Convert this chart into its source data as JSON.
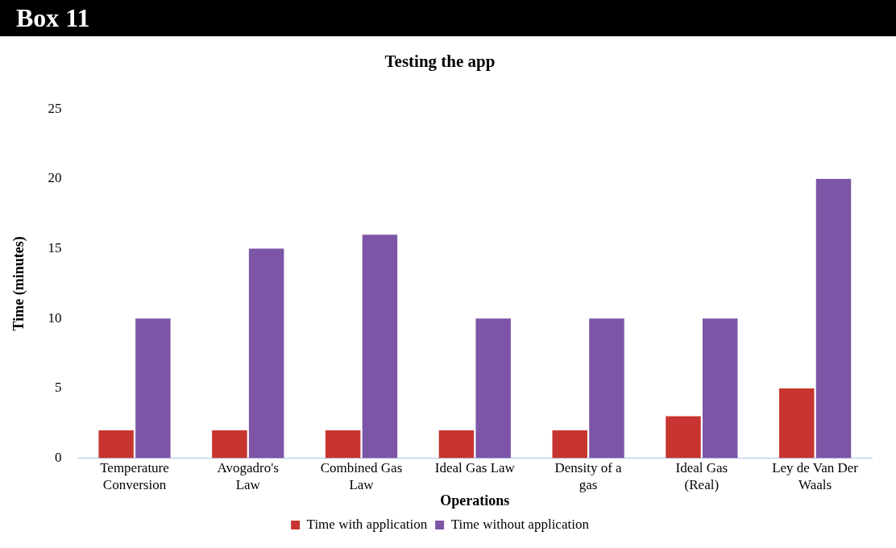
{
  "chart_data": {
    "type": "bar",
    "title": "Testing the app",
    "xlabel": "Operations",
    "ylabel": "Time (minutes)",
    "annotations": [
      "Box 11"
    ],
    "categories": [
      [
        "Temperature",
        "Conversion"
      ],
      [
        "Avogadro's",
        "Law"
      ],
      [
        "Combined Gas",
        "Law"
      ],
      [
        "Ideal Gas Law"
      ],
      [
        "Density of a",
        "gas"
      ],
      [
        "Ideal Gas",
        "(Real)"
      ],
      [
        "Ley de Van Der",
        "Waals"
      ]
    ],
    "series": [
      {
        "name": "Time with application",
        "color": "#c8342f",
        "values": [
          2,
          2,
          2,
          2,
          2,
          3,
          5
        ]
      },
      {
        "name": "Time without application",
        "color": "#7d55a6",
        "values": [
          10,
          15,
          16,
          10,
          10,
          10,
          20
        ]
      }
    ],
    "ylim": [
      0,
      25
    ],
    "yticks": [
      0,
      5,
      10,
      15,
      20,
      25
    ],
    "grid": false,
    "legend": "bottom"
  }
}
